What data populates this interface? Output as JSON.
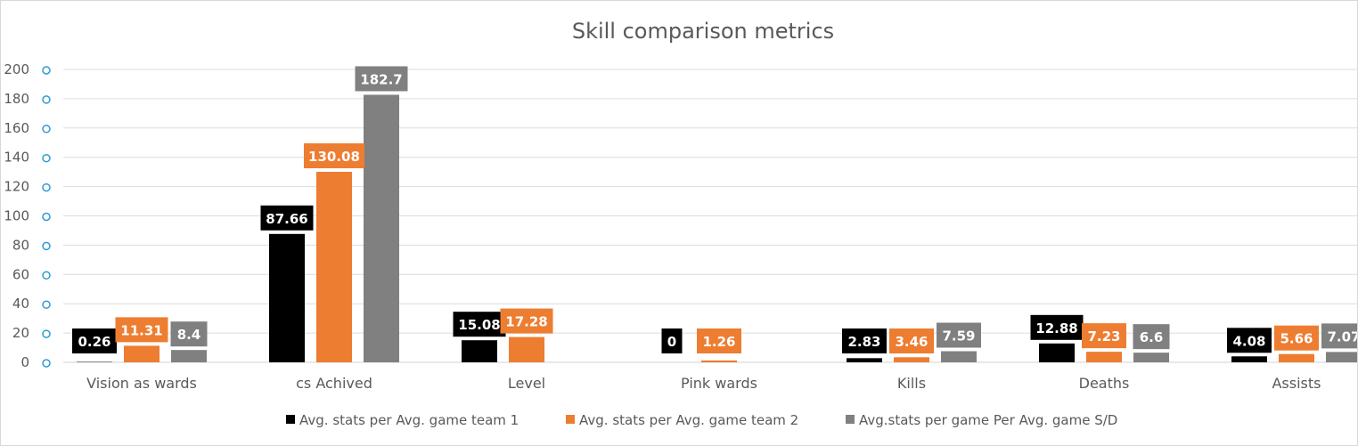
{
  "chart_data": {
    "type": "bar",
    "title": "Skill comparison metrics",
    "xlabel": "",
    "ylabel": "",
    "ylim": [
      0,
      200
    ],
    "yticks": [
      0,
      20,
      40,
      60,
      80,
      100,
      120,
      140,
      160,
      180,
      200
    ],
    "grid": true,
    "legend_position": "bottom",
    "categories": [
      "Vision as wards",
      "cs Achived",
      "Level",
      "Pink wards",
      "Kills",
      "Deaths",
      "Assists"
    ],
    "series": [
      {
        "name": "Avg. stats per Avg. game team 1",
        "color": "#000000",
        "values": [
          0.26,
          87.66,
          15.08,
          0,
          2.83,
          12.88,
          4.08
        ],
        "labels": [
          "0.26",
          "87.66",
          "15.08",
          "0",
          "2.83",
          "12.88",
          "4.08"
        ]
      },
      {
        "name": "Avg. stats per Avg. game team 2",
        "color": "#ed7d31",
        "values": [
          11.31,
          130.08,
          17.28,
          1.26,
          3.46,
          7.23,
          5.66
        ],
        "labels": [
          "11.31",
          "130.08",
          "17.28",
          "1.26",
          "3.46",
          "7.23",
          "5.66"
        ]
      },
      {
        "name": "Avg.stats per game Per Avg. game S/D",
        "color": "#808080",
        "values": [
          8.4,
          182.7,
          null,
          null,
          7.59,
          6.6,
          7.07
        ],
        "labels": [
          "8.4",
          "182.7",
          null,
          null,
          "7.59",
          "6.6",
          "7.07"
        ]
      }
    ]
  }
}
